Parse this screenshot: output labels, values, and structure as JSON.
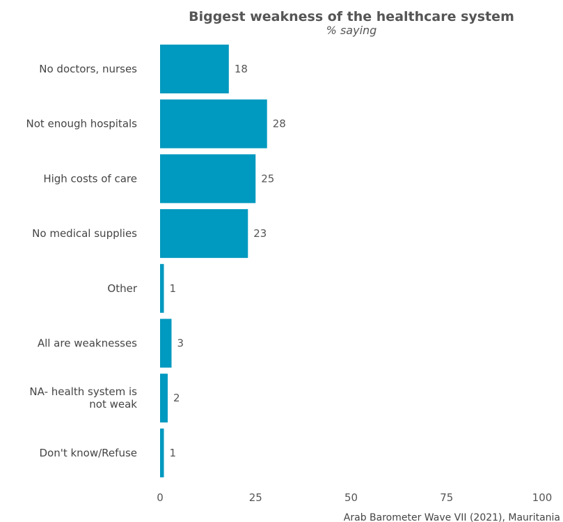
{
  "chart_data": {
    "type": "bar",
    "orientation": "horizontal",
    "title": "Biggest weakness of the healthcare system",
    "subtitle": "% saying",
    "caption": "Arab Barometer Wave VII (2021), Mauritania",
    "categories": [
      "No doctors, nurses",
      "Not enough hospitals",
      "High costs of care",
      "No medical supplies",
      "Other",
      "All are weaknesses",
      "NA- health system is not weak",
      "Don't know/Refuse"
    ],
    "category_lines": [
      [
        "No doctors, nurses"
      ],
      [
        "Not enough hospitals"
      ],
      [
        "High costs of care"
      ],
      [
        "No medical supplies"
      ],
      [
        "Other"
      ],
      [
        "All are weaknesses"
      ],
      [
        "NA- health system is",
        "not weak"
      ],
      [
        "Don't know/Refuse"
      ]
    ],
    "values": [
      18,
      28,
      25,
      23,
      1,
      3,
      2,
      1
    ],
    "x_ticks": [
      0,
      25,
      50,
      75,
      100
    ],
    "x_tick_labels": [
      "0",
      "25",
      "50",
      "75",
      "100"
    ],
    "xlim": [
      0,
      100
    ],
    "grid": false,
    "legend": "none",
    "colors": {
      "bar": "#0099bf",
      "text": "#555555"
    }
  }
}
